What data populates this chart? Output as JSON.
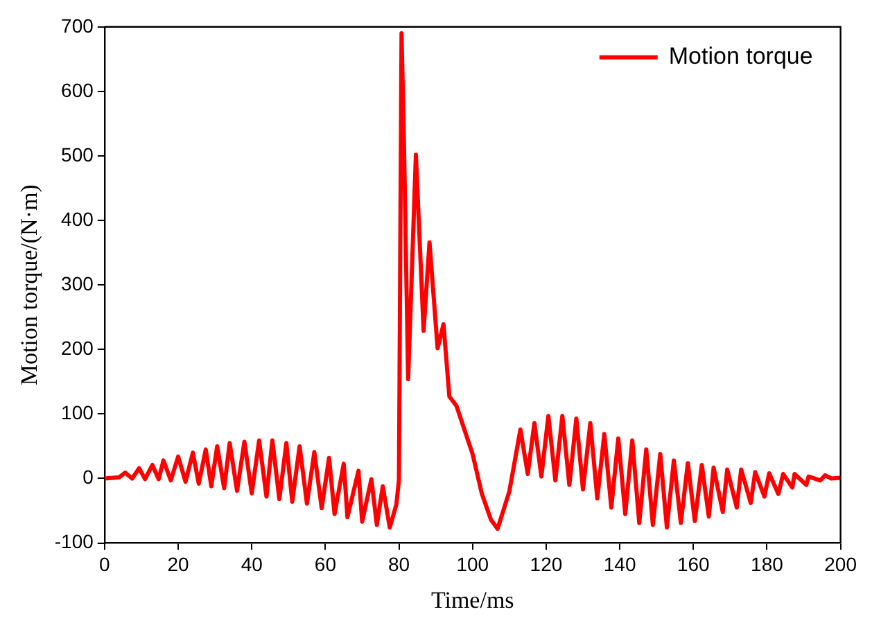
{
  "chart_data": {
    "type": "line",
    "xlabel": "Time/ms",
    "ylabel": "Motion torque/(N·m)",
    "xlim": [
      0,
      200
    ],
    "ylim": [
      -100,
      700
    ],
    "xticks": [
      0,
      20,
      40,
      60,
      80,
      100,
      120,
      140,
      160,
      180,
      200
    ],
    "yticks": [
      -100,
      0,
      100,
      200,
      300,
      400,
      500,
      600,
      700
    ],
    "grid": false,
    "legend": "top right",
    "marker": "none",
    "line_style": "solid",
    "series": [
      {
        "name": "Motion torque",
        "color": "#ff0000",
        "x": [
          0,
          4,
          5.6,
          7.5,
          9.4,
          11,
          13,
          14.7,
          16,
          18,
          20,
          22,
          24,
          25.6,
          27.5,
          29,
          30.6,
          32.5,
          34,
          36,
          38,
          40,
          42,
          44,
          45.6,
          47.5,
          49.4,
          51,
          53,
          55,
          57,
          59,
          61,
          62.5,
          65,
          66,
          69,
          70,
          72.5,
          74,
          75.6,
          77.5,
          79.3,
          80,
          80.4,
          80.7,
          81.3,
          82.5,
          84.6,
          86.7,
          88.3,
          90.5,
          92.1,
          93.7,
          95.6,
          100,
          102.5,
          105,
          106.8,
          110,
          113,
          115,
          116.8,
          118.7,
          120.6,
          122.5,
          124.4,
          126.3,
          128.2,
          130,
          132,
          133.9,
          135.8,
          137.7,
          139.6,
          141.5,
          143.4,
          145.3,
          147.2,
          149,
          151,
          152.8,
          154.7,
          156.6,
          158.5,
          160.4,
          162.3,
          164.2,
          165.5,
          168,
          169.2,
          171.8,
          173,
          175.6,
          176.8,
          179.3,
          180.6,
          183.1,
          184.4,
          186.9,
          187.5,
          190.7,
          191.3,
          194.5,
          195.8,
          197.5,
          200
        ],
        "values": [
          0,
          2,
          9,
          0,
          16,
          -1,
          21,
          -1,
          28,
          -3,
          34,
          -5,
          40,
          -8,
          45,
          -12,
          50,
          -15,
          55,
          -19,
          57,
          -23,
          59,
          -28,
          59,
          -32,
          55,
          -36,
          50,
          -39,
          41,
          -46,
          32,
          -55,
          23,
          -60,
          12,
          -67,
          -1,
          -72,
          -12,
          -76,
          -40,
          -2,
          400,
          690,
          540,
          154,
          502,
          229,
          366,
          202,
          239,
          127,
          113,
          38,
          -23,
          -64,
          -78,
          -20,
          76,
          7,
          86,
          3,
          97,
          -3,
          97,
          -10,
          93,
          -17,
          86,
          -31,
          69,
          -45,
          62,
          -55,
          59,
          -69,
          45,
          -72,
          38,
          -76,
          28,
          -69,
          24,
          -66,
          21,
          -59,
          17,
          -52,
          14,
          -45,
          14,
          -38,
          10,
          -28,
          8,
          -24,
          7,
          -14,
          7,
          -10,
          3,
          -3,
          5,
          0,
          1
        ]
      }
    ]
  }
}
